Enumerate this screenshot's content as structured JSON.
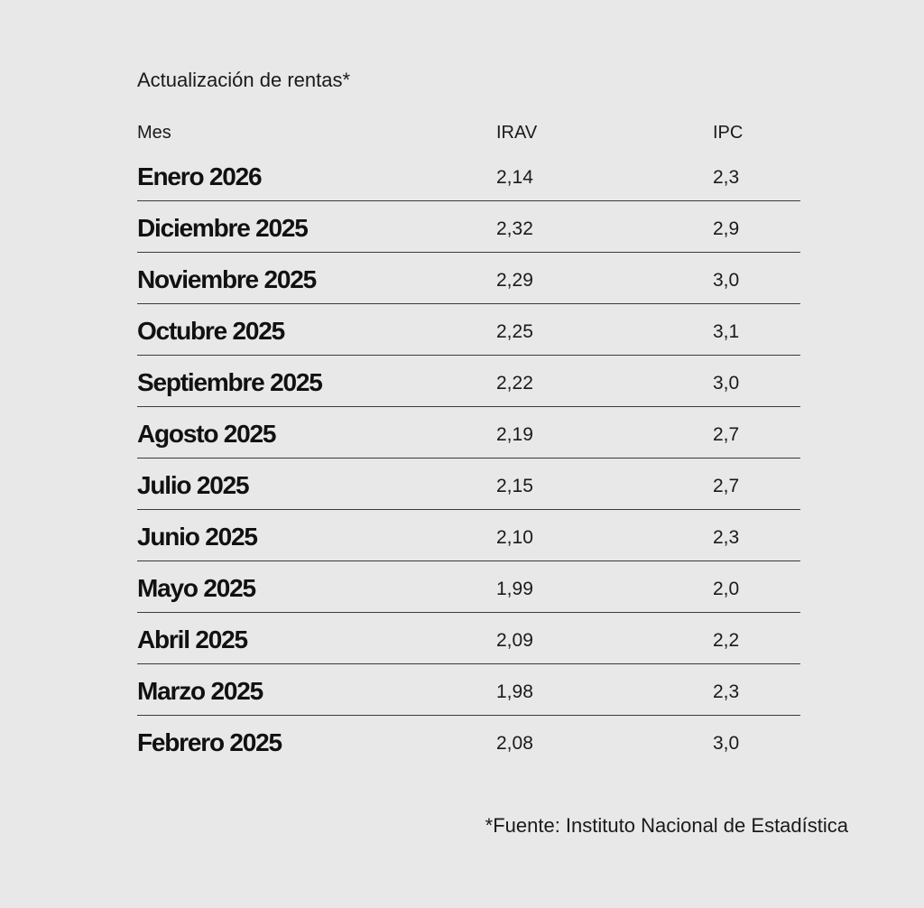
{
  "chart_data": {
    "type": "table",
    "title": "Actualización de rentas*",
    "columns": [
      "Mes",
      "IRAV",
      "IPC"
    ],
    "rows": [
      {
        "mes": "Enero 2026",
        "irav": "2,14",
        "ipc": "2,3"
      },
      {
        "mes": "Diciembre 2025",
        "irav": "2,32",
        "ipc": "2,9"
      },
      {
        "mes": "Noviembre 2025",
        "irav": "2,29",
        "ipc": "3,0"
      },
      {
        "mes": "Octubre 2025",
        "irav": "2,25",
        "ipc": "3,1"
      },
      {
        "mes": "Septiembre 2025",
        "irav": "2,22",
        "ipc": "3,0"
      },
      {
        "mes": "Agosto 2025",
        "irav": "2,19",
        "ipc": "2,7"
      },
      {
        "mes": "Julio 2025",
        "irav": "2,15",
        "ipc": "2,7"
      },
      {
        "mes": "Junio 2025",
        "irav": "2,10",
        "ipc": "2,3"
      },
      {
        "mes": "Mayo 2025",
        "irav": "1,99",
        "ipc": "2,0"
      },
      {
        "mes": "Abril 2025",
        "irav": "2,09",
        "ipc": "2,2"
      },
      {
        "mes": "Marzo 2025",
        "irav": "1,98",
        "ipc": "2,3"
      },
      {
        "mes": "Febrero 2025",
        "irav": "2,08",
        "ipc": "3,0"
      }
    ],
    "footnote": "*Fuente: Instituto Nacional de Estadística"
  },
  "colors": {
    "background": "#e8e8e8",
    "text": "#111111",
    "rule": "#3a3a3a"
  }
}
